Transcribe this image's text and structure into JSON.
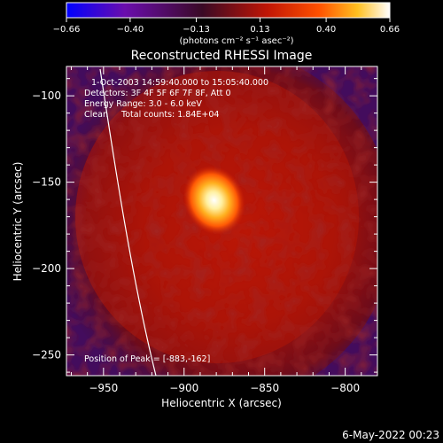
{
  "chart_data": {
    "type": "heatmap",
    "title": "Reconstructed RHESSI Image",
    "xlabel": "Heliocentric X (arcsec)",
    "ylabel": "Heliocentric Y (arcsec)",
    "xlim": [
      -973,
      -780
    ],
    "ylim": [
      -262,
      -83
    ],
    "x_ticks": [
      -950,
      -900,
      -850,
      -800
    ],
    "y_ticks": [
      -100,
      -150,
      -200,
      -250
    ],
    "x_tick_labels": [
      "−950",
      "−900",
      "−850",
      "−800"
    ],
    "y_tick_labels": [
      "−100",
      "−150",
      "−200",
      "−250"
    ],
    "colorbar": {
      "range": [
        -0.66,
        0.66
      ],
      "ticks": [
        -0.66,
        -0.4,
        -0.13,
        0.13,
        0.4,
        0.66
      ],
      "tick_labels": [
        "−0.66",
        "−0.40",
        "−0.13",
        "0.13",
        "0.40",
        "0.66"
      ],
      "unit_label": "(photons cm⁻² s⁻¹ asec⁻²)",
      "colors": [
        "#0000ff",
        "#6a0dad",
        "#3a0a25",
        "#c01505",
        "#ff5000",
        "#ffc020",
        "#ffffff"
      ]
    },
    "peak": {
      "x": -883,
      "y": -162,
      "value": 0.66
    },
    "annotations": [
      "1-Oct-2003 14:59:40.000 to 15:05:40.000",
      "Detectors: 3F 4F 5F 6F 7F 8F, Att 0",
      "Energy Range: 3.0 - 6.0 keV",
      "Clean     Total counts: 1.84E+04"
    ],
    "peak_label": "Position of Peak = [-883,-162]",
    "limb": "solar limb curve"
  },
  "footer_date": "6-May-2022 00:23"
}
